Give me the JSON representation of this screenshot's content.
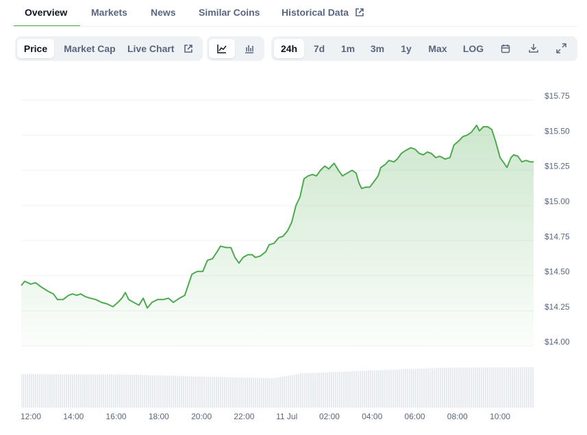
{
  "tabs": [
    "Overview",
    "Markets",
    "News",
    "Similar Coins",
    "Historical Data"
  ],
  "toolbar": {
    "views": [
      "Price",
      "Market Cap",
      "Live Chart"
    ],
    "ranges": [
      "24h",
      "7d",
      "1m",
      "3m",
      "1y",
      "Max",
      "LOG"
    ]
  },
  "chart_data": {
    "type": "line",
    "color": "#4ca94d",
    "grid": true,
    "x": [
      11.55,
      11.71,
      12.0,
      12.22,
      12.48,
      12.8,
      13.06,
      13.25,
      13.51,
      13.77,
      13.96,
      14.15,
      14.34,
      14.57,
      14.79,
      15.05,
      15.31,
      15.56,
      15.85,
      16.08,
      16.27,
      16.43,
      16.59,
      16.82,
      17.07,
      17.27,
      17.46,
      17.68,
      17.94,
      18.2,
      18.45,
      18.68,
      18.97,
      19.22,
      19.35,
      19.55,
      19.8,
      20.06,
      20.28,
      20.51,
      20.73,
      20.89,
      21.15,
      21.38,
      21.57,
      21.76,
      21.95,
      22.18,
      22.37,
      22.53,
      22.76,
      23.01,
      23.17,
      23.4,
      23.62,
      23.82,
      24.04,
      24.23,
      24.43,
      24.62,
      24.81,
      25.0,
      25.2,
      25.39,
      25.58,
      25.78,
      25.97,
      26.22,
      26.42,
      26.61,
      26.83,
      27.06,
      27.25,
      27.38,
      27.51,
      27.7,
      27.89,
      28.09,
      28.28,
      28.41,
      28.6,
      28.79,
      29.02,
      29.18,
      29.37,
      29.56,
      29.82,
      30.01,
      30.21,
      30.4,
      30.59,
      30.78,
      30.98,
      31.17,
      31.43,
      31.65,
      31.84,
      32.07,
      32.26,
      32.45,
      32.65,
      32.9,
      33.03,
      33.22,
      33.42,
      33.61,
      33.8,
      34.0,
      34.19,
      34.32,
      34.51,
      34.64,
      34.83,
      35.02,
      35.22,
      35.41,
      35.57
    ],
    "values": [
      14.43,
      14.46,
      14.44,
      14.45,
      14.42,
      14.39,
      14.37,
      14.33,
      14.33,
      14.36,
      14.37,
      14.36,
      14.37,
      14.35,
      14.34,
      14.33,
      14.31,
      14.3,
      14.28,
      14.31,
      14.34,
      14.38,
      14.33,
      14.31,
      14.29,
      14.34,
      14.27,
      14.31,
      14.33,
      14.33,
      14.34,
      14.31,
      14.34,
      14.36,
      14.42,
      14.51,
      14.53,
      14.53,
      14.61,
      14.62,
      14.67,
      14.71,
      14.7,
      14.7,
      14.63,
      14.59,
      14.63,
      14.65,
      14.65,
      14.63,
      14.64,
      14.67,
      14.72,
      14.73,
      14.77,
      14.78,
      14.82,
      14.88,
      15.0,
      15.06,
      15.19,
      15.21,
      15.22,
      15.21,
      15.25,
      15.28,
      15.26,
      15.3,
      15.25,
      15.21,
      15.23,
      15.25,
      15.23,
      15.16,
      15.12,
      15.13,
      15.13,
      15.17,
      15.21,
      15.27,
      15.29,
      15.32,
      15.31,
      15.33,
      15.37,
      15.39,
      15.41,
      15.4,
      15.37,
      15.36,
      15.38,
      15.37,
      15.34,
      15.35,
      15.33,
      15.34,
      15.43,
      15.46,
      15.49,
      15.5,
      15.52,
      15.57,
      15.53,
      15.56,
      15.56,
      15.54,
      15.45,
      15.34,
      15.3,
      15.27,
      15.34,
      15.36,
      15.35,
      15.31,
      15.32,
      15.31,
      15.31
    ],
    "xlim": [
      11.55,
      35.57
    ],
    "xticks": [
      {
        "value": 12,
        "label": "12:00"
      },
      {
        "value": 14,
        "label": "14:00"
      },
      {
        "value": 16,
        "label": "16:00"
      },
      {
        "value": 18,
        "label": "18:00"
      },
      {
        "value": 20,
        "label": "20:00"
      },
      {
        "value": 22,
        "label": "22:00"
      },
      {
        "value": 24,
        "label": "11 Jul"
      },
      {
        "value": 26,
        "label": "02:00"
      },
      {
        "value": 28,
        "label": "04:00"
      },
      {
        "value": 30,
        "label": "06:00"
      },
      {
        "value": 32,
        "label": "08:00"
      },
      {
        "value": 34,
        "label": "10:00"
      }
    ],
    "ylim": [
      14.0,
      15.75
    ],
    "yticks": [
      {
        "value": 14.0,
        "label": "$14.00"
      },
      {
        "value": 14.25,
        "label": "$14.25"
      },
      {
        "value": 14.5,
        "label": "$14.50"
      },
      {
        "value": 14.75,
        "label": "$14.75"
      },
      {
        "value": 15.0,
        "label": "$15.00"
      },
      {
        "value": 15.25,
        "label": "$15.25"
      },
      {
        "value": 15.5,
        "label": "$15.50"
      },
      {
        "value": 15.75,
        "label": "$15.75"
      }
    ]
  }
}
